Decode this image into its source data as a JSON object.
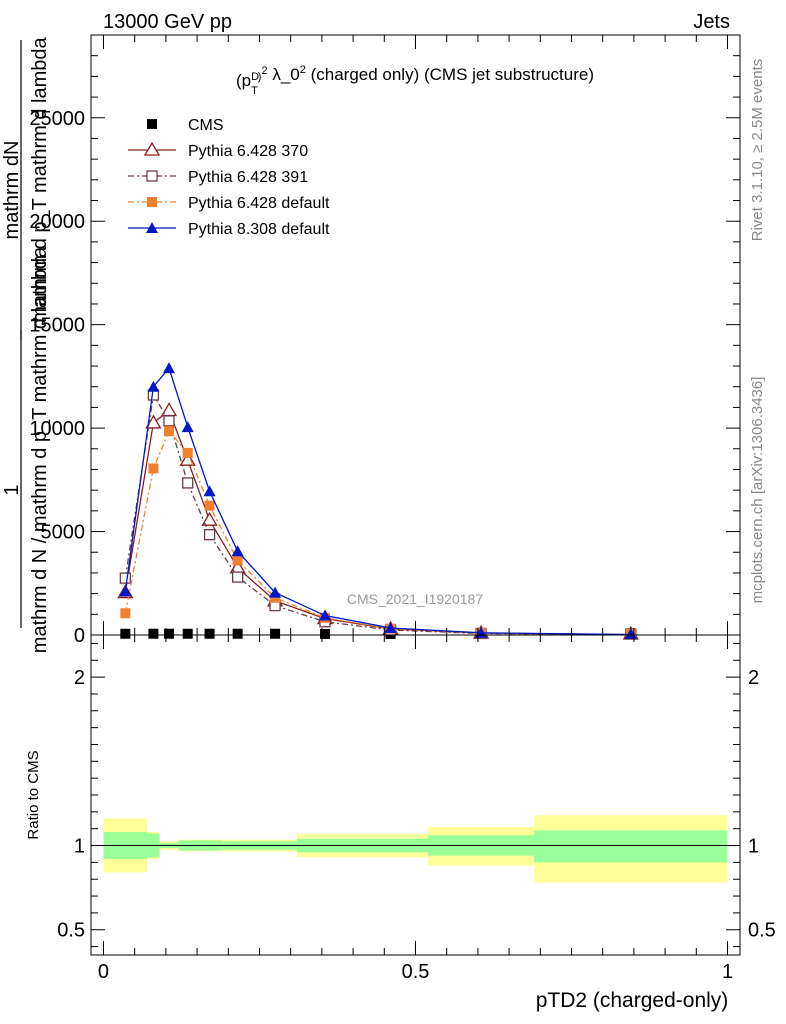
{
  "header": {
    "left": "13000 GeV pp",
    "right": "Jets"
  },
  "side_labels": {
    "rivet": "Rivet 3.1.10, ≥ 2.5M events",
    "mcplots": "mcplots.cern.ch [arXiv:1306.3436]"
  },
  "watermark": "CMS_2021_I1920187",
  "ylabel_upper": {
    "numerator": "1",
    "line_a": "mathrm dN",
    "line_b": "mathrm d p_T mathrm d lambda",
    "denominator": "mathrm d N / mathrm d p_T mathrm d lambda"
  },
  "ratio_ylabel": "Ratio to CMS",
  "xlabel": "pTD2 (charged-only)",
  "chart_data": [
    {
      "type": "line",
      "title": "(p_T^D)^2 λ_0^2 (charged only) (CMS jet substructure)",
      "ylim": [
        0,
        29000
      ],
      "xlim": [
        -0.02,
        1.02
      ],
      "y_ticks": [
        0,
        5000,
        10000,
        15000,
        20000,
        25000
      ],
      "y_tick_labels": [
        "0",
        "5000",
        "10000",
        "15000",
        "20000",
        "25000"
      ],
      "legend_position": "top-left",
      "x": [
        0.035,
        0.08,
        0.105,
        0.135,
        0.17,
        0.215,
        0.275,
        0.355,
        0.46,
        0.605,
        0.845
      ],
      "series": [
        {
          "name": "CMS",
          "color": "#000000",
          "marker": "square",
          "values": [
            60,
            60,
            60,
            60,
            60,
            60,
            60,
            50,
            40,
            30,
            20
          ]
        },
        {
          "name": "Pythia 6.428 370",
          "color": "#8b1a1a",
          "marker": "open-triangle",
          "values": [
            2050,
            10250,
            10850,
            8450,
            5550,
            3250,
            1650,
            790,
            290,
            95,
            18
          ]
        },
        {
          "name": "Pythia 6.428 391",
          "color": "#6b3a4a",
          "marker": "open-square",
          "values": [
            2750,
            11600,
            10350,
            7350,
            4850,
            2800,
            1420,
            640,
            240,
            75,
            15
          ]
        },
        {
          "name": "Pythia 6.428 default",
          "color": "#f08030",
          "marker": "square",
          "values": [
            1050,
            8050,
            9850,
            8800,
            6250,
            3600,
            1800,
            830,
            310,
            90,
            17
          ]
        },
        {
          "name": "Pythia 8.308 default",
          "color": "#0018c8",
          "marker": "triangle",
          "values": [
            2100,
            12000,
            12900,
            10050,
            6950,
            4050,
            2050,
            940,
            340,
            105,
            20
          ]
        }
      ]
    },
    {
      "type": "area",
      "ylabel": "Ratio to CMS",
      "ylim": [
        0.35,
        2.25
      ],
      "y_ticks": [
        0.5,
        1,
        2
      ],
      "y_tick_labels": [
        "0.5",
        "1",
        "2"
      ],
      "x_ticks": [
        0,
        0.5,
        1
      ],
      "x_tick_labels": [
        "0",
        "0.5",
        "1"
      ],
      "reference_line": 1,
      "bins": [
        {
          "x0": 0.0,
          "x1": 0.07,
          "inner": [
            0.92,
            1.08
          ],
          "outer": [
            0.84,
            1.16
          ]
        },
        {
          "x0": 0.07,
          "x1": 0.09,
          "inner": [
            0.93,
            1.07
          ],
          "outer": [
            0.92,
            1.08
          ]
        },
        {
          "x0": 0.09,
          "x1": 0.12,
          "inner": [
            0.985,
            1.015
          ],
          "outer": [
            0.975,
            1.025
          ]
        },
        {
          "x0": 0.12,
          "x1": 0.19,
          "inner": [
            0.97,
            1.03
          ],
          "outer": [
            0.965,
            1.035
          ]
        },
        {
          "x0": 0.19,
          "x1": 0.31,
          "inner": [
            0.975,
            1.025
          ],
          "outer": [
            0.965,
            1.035
          ]
        },
        {
          "x0": 0.31,
          "x1": 0.52,
          "inner": [
            0.96,
            1.04
          ],
          "outer": [
            0.93,
            1.07
          ]
        },
        {
          "x0": 0.52,
          "x1": 0.69,
          "inner": [
            0.94,
            1.06
          ],
          "outer": [
            0.88,
            1.11
          ]
        },
        {
          "x0": 0.69,
          "x1": 1.0,
          "inner": [
            0.9,
            1.09
          ],
          "outer": [
            0.78,
            1.18
          ]
        }
      ],
      "inner_color": "#99ff99",
      "outer_color": "#ffff99"
    }
  ]
}
